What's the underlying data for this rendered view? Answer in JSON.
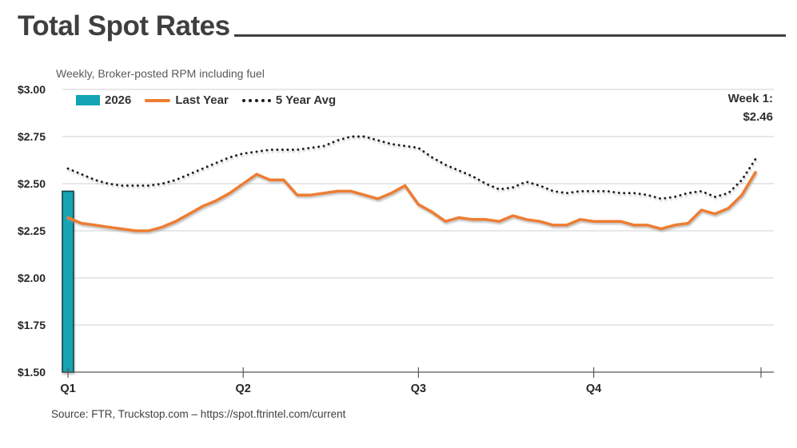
{
  "title": "Total Spot Rates",
  "subtitle": "Weekly, Broker-posted RPM including fuel",
  "source": "Source: FTR, Truckstop.com – https://spot.ftrintel.com/current",
  "annotation": {
    "week_label": "Week 1:",
    "week_value": "$2.46"
  },
  "colors": {
    "bar_fill": "#12a4b4",
    "bar_stroke": "#173f45",
    "last_year_line": "#ed7d31",
    "five_year_avg_line": "#1a1a1a",
    "grid": "#d9d9d9",
    "axis": "#595959",
    "title_text": "#3f3f3f"
  },
  "legend": [
    {
      "label": "2026",
      "type": "bar",
      "color": "#12a4b4"
    },
    {
      "label": "Last Year",
      "type": "line",
      "color": "#ed7d31"
    },
    {
      "label": "5 Year Avg",
      "type": "dotted-line",
      "color": "#1a1a1a"
    }
  ],
  "chart_data": {
    "type": "bar",
    "subtype": "combo-bar-and-lines",
    "title": "Total Spot Rates",
    "subtitle": "Weekly, Broker-posted RPM including fuel",
    "x_unit": "week",
    "weeks": 52,
    "x_tick_labels": [
      "Q1",
      "Q2",
      "Q3",
      "Q4"
    ],
    "x_tick_weeks": [
      1,
      14,
      27,
      40
    ],
    "ylim": [
      1.5,
      3.0
    ],
    "y_tick_values": [
      1.5,
      1.75,
      2.0,
      2.25,
      2.5,
      2.75,
      3.0
    ],
    "y_tick_labels": [
      "$1.50",
      "$1.75",
      "$2.00",
      "$2.25",
      "$2.50",
      "$2.75",
      "$3.00"
    ],
    "y_grid_values": [
      1.75,
      2.0,
      2.25,
      2.5,
      2.75,
      3.0
    ],
    "grid": true,
    "legend_position": "top-left",
    "annotation": "Week 1: $2.46",
    "series": [
      {
        "name": "2026",
        "type": "bar",
        "color": "#12a4b4",
        "weeks": [
          1
        ],
        "values": [
          2.46
        ]
      },
      {
        "name": "Last Year",
        "type": "line",
        "color": "#ed7d31",
        "values": [
          2.32,
          2.29,
          2.28,
          2.27,
          2.26,
          2.25,
          2.25,
          2.27,
          2.3,
          2.34,
          2.38,
          2.41,
          2.45,
          2.5,
          2.55,
          2.52,
          2.52,
          2.44,
          2.44,
          2.45,
          2.46,
          2.46,
          2.44,
          2.42,
          2.45,
          2.49,
          2.39,
          2.35,
          2.3,
          2.32,
          2.31,
          2.31,
          2.3,
          2.33,
          2.31,
          2.3,
          2.28,
          2.28,
          2.31,
          2.3,
          2.3,
          2.3,
          2.28,
          2.28,
          2.26,
          2.28,
          2.29,
          2.36,
          2.34,
          2.37,
          2.44,
          2.56
        ]
      },
      {
        "name": "5 Year Avg",
        "type": "dotted-line",
        "color": "#1a1a1a",
        "values": [
          2.58,
          2.55,
          2.52,
          2.5,
          2.49,
          2.49,
          2.49,
          2.5,
          2.52,
          2.55,
          2.58,
          2.61,
          2.64,
          2.66,
          2.67,
          2.68,
          2.68,
          2.68,
          2.69,
          2.7,
          2.73,
          2.75,
          2.75,
          2.73,
          2.71,
          2.7,
          2.69,
          2.64,
          2.6,
          2.57,
          2.54,
          2.5,
          2.47,
          2.48,
          2.51,
          2.49,
          2.46,
          2.45,
          2.46,
          2.46,
          2.46,
          2.45,
          2.45,
          2.44,
          2.42,
          2.43,
          2.45,
          2.46,
          2.43,
          2.45,
          2.52,
          2.63
        ]
      }
    ]
  }
}
